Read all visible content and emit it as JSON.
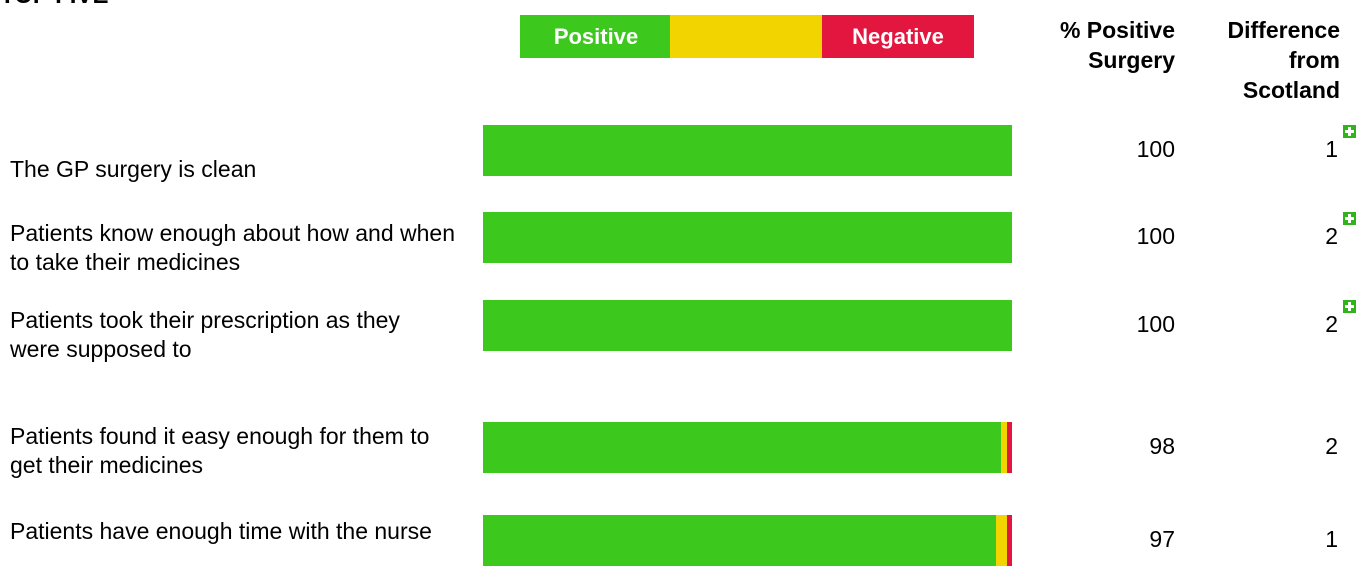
{
  "chart_data": {
    "type": "bar",
    "orientation": "horizontal",
    "stacked": true,
    "title": "TOP FIVE",
    "categories": [
      "The GP surgery is clean",
      "Patients know enough about how and when to take their medicines",
      "Patients took their prescription as they were supposed to",
      "Patients found it easy enough for them to get their medicines",
      "Patients have enough time with the nurse"
    ],
    "series": [
      {
        "name": "Positive",
        "color": "#3cc81c",
        "values": [
          100,
          100,
          100,
          98,
          97
        ]
      },
      {
        "name": null,
        "color": "#f2d400",
        "values": [
          0,
          0,
          0,
          1,
          2
        ]
      },
      {
        "name": "Negative",
        "color": "#e2163e",
        "values": [
          0,
          0,
          0,
          1,
          1
        ]
      }
    ],
    "xlim": [
      0,
      100
    ],
    "positive_header": "% Positive Surgery",
    "difference": {
      "header": "Difference from Scotland",
      "values": [
        1,
        2,
        2,
        2,
        1
      ],
      "significant": [
        true,
        true,
        true,
        false,
        false
      ]
    }
  }
}
